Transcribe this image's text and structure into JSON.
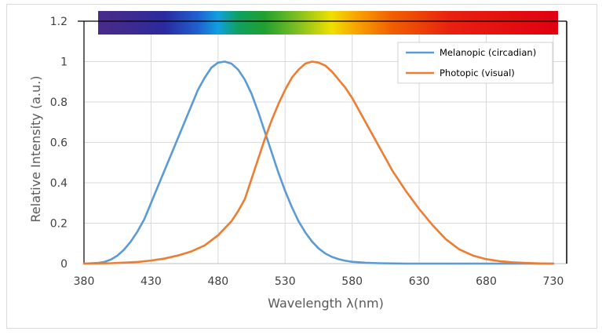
{
  "chart_data": {
    "type": "line",
    "title": "",
    "xlabel": "Wavelength λ(nm)",
    "ylabel": "Relative Intensity (a.u.)",
    "xlim": [
      380,
      740
    ],
    "ylim": [
      0,
      1.2
    ],
    "x_ticks": [
      380,
      430,
      480,
      530,
      580,
      630,
      680,
      730
    ],
    "y_ticks": [
      0,
      0.2,
      0.4,
      0.6,
      0.8,
      1,
      1.2
    ],
    "x_tick_labels": [
      "380",
      "430",
      "480",
      "530",
      "580",
      "630",
      "680",
      "730"
    ],
    "y_tick_labels": [
      "0",
      "0.2",
      "0.4",
      "0.6",
      "0.8",
      "1",
      "1.2"
    ],
    "grid": true,
    "legend_position": "top-right",
    "spectrum_bar": {
      "range_nm": [
        395,
        740
      ],
      "color_stops": [
        {
          "nm": 395,
          "color": "#4a2a8a"
        },
        {
          "nm": 420,
          "color": "#3d2a90"
        },
        {
          "nm": 445,
          "color": "#2a2aa0"
        },
        {
          "nm": 470,
          "color": "#2060d0"
        },
        {
          "nm": 485,
          "color": "#10a0e0"
        },
        {
          "nm": 500,
          "color": "#10a060"
        },
        {
          "nm": 520,
          "color": "#20a030"
        },
        {
          "nm": 545,
          "color": "#80c020"
        },
        {
          "nm": 570,
          "color": "#f0e000"
        },
        {
          "nm": 590,
          "color": "#f8a000"
        },
        {
          "nm": 615,
          "color": "#f06000"
        },
        {
          "nm": 660,
          "color": "#e82010"
        },
        {
          "nm": 740,
          "color": "#e00010"
        }
      ]
    },
    "series": [
      {
        "name": "Melanopic (circadian)",
        "color": "#5b9bd5",
        "x": [
          380,
          390,
          395,
          400,
          405,
          410,
          415,
          420,
          425,
          430,
          435,
          440,
          445,
          450,
          455,
          460,
          465,
          470,
          475,
          480,
          485,
          490,
          495,
          500,
          505,
          510,
          515,
          520,
          525,
          530,
          535,
          540,
          545,
          550,
          555,
          560,
          565,
          570,
          575,
          580,
          590,
          600,
          610,
          620,
          630,
          650,
          680,
          700,
          730
        ],
        "values": [
          0.0,
          0.003,
          0.008,
          0.02,
          0.04,
          0.07,
          0.11,
          0.16,
          0.22,
          0.3,
          0.38,
          0.46,
          0.54,
          0.62,
          0.7,
          0.78,
          0.86,
          0.92,
          0.97,
          0.995,
          1.0,
          0.99,
          0.96,
          0.91,
          0.84,
          0.75,
          0.65,
          0.55,
          0.45,
          0.36,
          0.28,
          0.21,
          0.155,
          0.11,
          0.075,
          0.05,
          0.033,
          0.022,
          0.014,
          0.009,
          0.004,
          0.002,
          0.001,
          0.0,
          0.0,
          0.0,
          0.0,
          0.0,
          0.0
        ]
      },
      {
        "name": "Photopic (visual)",
        "color": "#ed7d31",
        "x": [
          380,
          400,
          420,
          430,
          440,
          450,
          460,
          470,
          480,
          490,
          495,
          500,
          505,
          510,
          515,
          520,
          525,
          530,
          535,
          540,
          545,
          550,
          555,
          560,
          565,
          570,
          575,
          580,
          590,
          600,
          610,
          620,
          630,
          640,
          650,
          660,
          670,
          680,
          690,
          700,
          710,
          720,
          730
        ],
        "values": [
          0.0,
          0.002,
          0.008,
          0.015,
          0.025,
          0.04,
          0.06,
          0.09,
          0.14,
          0.21,
          0.26,
          0.32,
          0.42,
          0.52,
          0.62,
          0.71,
          0.79,
          0.86,
          0.92,
          0.96,
          0.99,
          1.0,
          0.995,
          0.98,
          0.95,
          0.91,
          0.87,
          0.82,
          0.7,
          0.58,
          0.46,
          0.36,
          0.27,
          0.19,
          0.12,
          0.07,
          0.04,
          0.022,
          0.012,
          0.006,
          0.003,
          0.001,
          0.0
        ]
      }
    ]
  }
}
